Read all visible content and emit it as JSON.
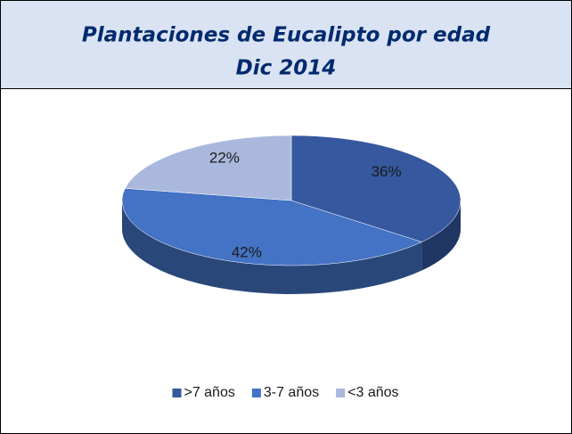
{
  "chart_data": {
    "type": "pie",
    "title": "Plantaciones de Eucalipto por edad",
    "subtitle": "Dic 2014",
    "categories": [
      ">7 años",
      "3-7 años",
      "<3 años"
    ],
    "values": [
      36,
      42,
      22
    ],
    "value_labels": [
      "36%",
      "42%",
      "22%"
    ],
    "colors": [
      "#35589f",
      "#4472c4",
      "#a9b8dc"
    ],
    "legend": "bottom"
  }
}
